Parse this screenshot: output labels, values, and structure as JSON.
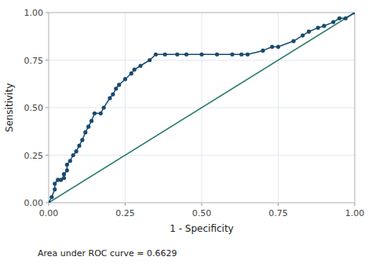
{
  "chart_data": {
    "type": "line",
    "xlabel": "1 - Specificity",
    "ylabel": "Sensitivity",
    "annotation": "Area under ROC curve = 0.6629",
    "grid": true,
    "xlim": [
      0,
      1
    ],
    "ylim": [
      0,
      1
    ],
    "xticks": [
      {
        "value": 0,
        "label": "0.00"
      },
      0.25,
      {
        "value": 0.5,
        "label": "0.50"
      },
      0.75,
      {
        "value": 1,
        "label": "1.00"
      }
    ],
    "yticks": [
      {
        "value": 0,
        "label": "0.00"
      },
      0.25,
      {
        "value": 0.5,
        "label": "0.50"
      },
      0.75,
      {
        "value": 1,
        "label": "1.00"
      }
    ],
    "series": [
      {
        "color": "#2a7a6e",
        "x": [
          0,
          1
        ],
        "values": [
          0,
          1
        ]
      },
      {
        "color": "#1a4a6e",
        "marker": "circle",
        "x": [
          0.0,
          0.01,
          0.02,
          0.02,
          0.03,
          0.04,
          0.05,
          0.05,
          0.06,
          0.06,
          0.07,
          0.08,
          0.09,
          0.1,
          0.11,
          0.12,
          0.13,
          0.14,
          0.15,
          0.17,
          0.18,
          0.2,
          0.21,
          0.22,
          0.23,
          0.25,
          0.27,
          0.28,
          0.3,
          0.33,
          0.35,
          0.38,
          0.42,
          0.45,
          0.5,
          0.55,
          0.6,
          0.63,
          0.65,
          0.7,
          0.73,
          0.75,
          0.8,
          0.83,
          0.85,
          0.88,
          0.9,
          0.93,
          0.95,
          0.97,
          1.0
        ],
        "values": [
          0.0,
          0.03,
          0.07,
          0.1,
          0.12,
          0.12,
          0.13,
          0.15,
          0.17,
          0.2,
          0.22,
          0.25,
          0.27,
          0.3,
          0.33,
          0.37,
          0.4,
          0.43,
          0.47,
          0.47,
          0.5,
          0.55,
          0.57,
          0.6,
          0.62,
          0.65,
          0.68,
          0.7,
          0.72,
          0.75,
          0.78,
          0.78,
          0.78,
          0.78,
          0.78,
          0.78,
          0.78,
          0.78,
          0.78,
          0.8,
          0.82,
          0.82,
          0.85,
          0.88,
          0.9,
          0.92,
          0.93,
          0.95,
          0.97,
          0.97,
          1.0
        ]
      }
    ]
  }
}
